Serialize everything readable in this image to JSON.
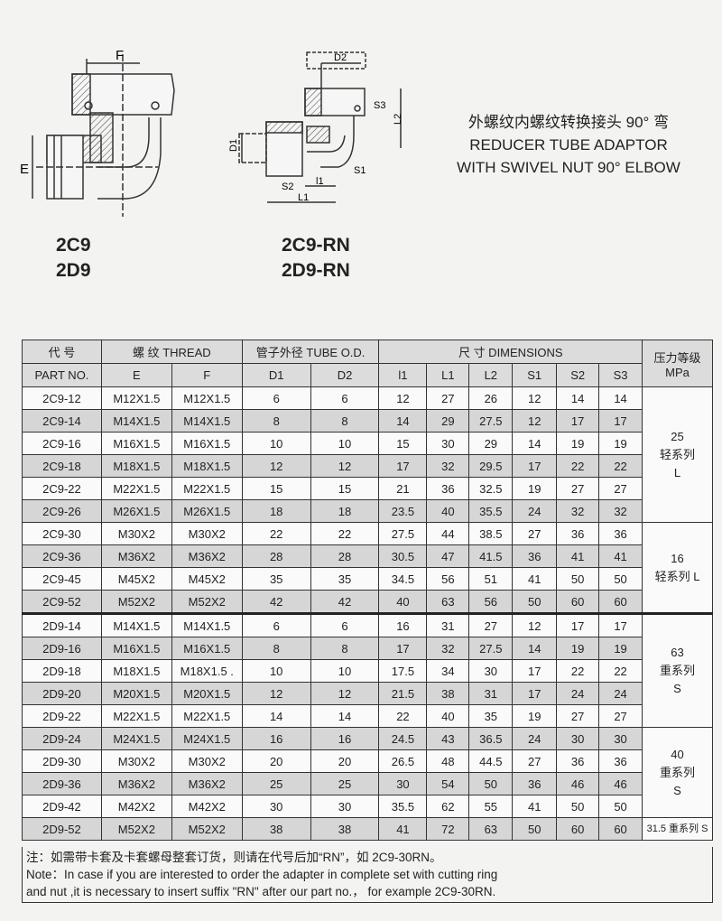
{
  "drawings": {
    "left_labels": {
      "f": "F",
      "e": "E"
    },
    "right_labels": {
      "d2": "D2",
      "s3": "S3",
      "l2": "L2",
      "d1": "D1",
      "s1": "S1",
      "s2": "S2",
      "l1_small": "l1",
      "l1": "L1"
    }
  },
  "models": {
    "left": [
      "2C9",
      "2D9"
    ],
    "right": [
      "2C9-RN",
      "2D9-RN"
    ]
  },
  "title": {
    "cn": "外螺纹内螺纹转换接头 90° 弯",
    "en1": "REDUCER TUBE ADAPTOR",
    "en2": "WITH SWIVEL NUT 90° ELBOW"
  },
  "table": {
    "header": {
      "part_cn": "代 号",
      "part_en": "PART NO.",
      "thread": "螺 纹  THREAD",
      "tube": "管子外径 TUBE O.D.",
      "dims": "尺 寸   DIMENSIONS",
      "pressure": "压力等级",
      "pressure_unit": "MPa",
      "cols": [
        "E",
        "F",
        "D1",
        "D2",
        "l1",
        "L1",
        "L2",
        "S1",
        "S2",
        "S3"
      ]
    },
    "rows": [
      [
        "2C9-12",
        "M12X1.5",
        "M12X1.5",
        "6",
        "6",
        "12",
        "27",
        "26",
        "12",
        "14",
        "14"
      ],
      [
        "2C9-14",
        "M14X1.5",
        "M14X1.5",
        "8",
        "8",
        "14",
        "29",
        "27.5",
        "12",
        "17",
        "17"
      ],
      [
        "2C9-16",
        "M16X1.5",
        "M16X1.5",
        "10",
        "10",
        "15",
        "30",
        "29",
        "14",
        "19",
        "19"
      ],
      [
        "2C9-18",
        "M18X1.5",
        "M18X1.5",
        "12",
        "12",
        "17",
        "32",
        "29.5",
        "17",
        "22",
        "22"
      ],
      [
        "2C9-22",
        "M22X1.5",
        "M22X1.5",
        "15",
        "15",
        "21",
        "36",
        "32.5",
        "19",
        "27",
        "27"
      ],
      [
        "2C9-26",
        "M26X1.5",
        "M26X1.5",
        "18",
        "18",
        "23.5",
        "40",
        "35.5",
        "24",
        "32",
        "32"
      ],
      [
        "2C9-30",
        "M30X2",
        "M30X2",
        "22",
        "22",
        "27.5",
        "44",
        "38.5",
        "27",
        "36",
        "36"
      ],
      [
        "2C9-36",
        "M36X2",
        "M36X2",
        "28",
        "28",
        "30.5",
        "47",
        "41.5",
        "36",
        "41",
        "41"
      ],
      [
        "2C9-45",
        "M45X2",
        "M45X2",
        "35",
        "35",
        "34.5",
        "56",
        "51",
        "41",
        "50",
        "50"
      ],
      [
        "2C9-52",
        "M52X2",
        "M52X2",
        "42",
        "42",
        "40",
        "63",
        "56",
        "50",
        "60",
        "60"
      ],
      [
        "2D9-14",
        "M14X1.5",
        "M14X1.5",
        "6",
        "6",
        "16",
        "31",
        "27",
        "12",
        "17",
        "17"
      ],
      [
        "2D9-16",
        "M16X1.5",
        "M16X1.5",
        "8",
        "8",
        "17",
        "32",
        "27.5",
        "14",
        "19",
        "19"
      ],
      [
        "2D9-18",
        "M18X1.5",
        "M18X1.5 .",
        "10",
        "10",
        "17.5",
        "34",
        "30",
        "17",
        "22",
        "22"
      ],
      [
        "2D9-20",
        "M20X1.5",
        "M20X1.5",
        "12",
        "12",
        "21.5",
        "38",
        "31",
        "17",
        "24",
        "24"
      ],
      [
        "2D9-22",
        "M22X1.5",
        "M22X1.5",
        "14",
        "14",
        "22",
        "40",
        "35",
        "19",
        "27",
        "27"
      ],
      [
        "2D9-24",
        "M24X1.5",
        "M24X1.5",
        "16",
        "16",
        "24.5",
        "43",
        "36.5",
        "24",
        "30",
        "30"
      ],
      [
        "2D9-30",
        "M30X2",
        "M30X2",
        "20",
        "20",
        "26.5",
        "48",
        "44.5",
        "27",
        "36",
        "36"
      ],
      [
        "2D9-36",
        "M36X2",
        "M36X2",
        "25",
        "25",
        "30",
        "54",
        "50",
        "36",
        "46",
        "46"
      ],
      [
        "2D9-42",
        "M42X2",
        "M42X2",
        "30",
        "30",
        "35.5",
        "62",
        "55",
        "41",
        "50",
        "50"
      ],
      [
        "2D9-52",
        "M52X2",
        "M52X2",
        "38",
        "38",
        "41",
        "72",
        "63",
        "50",
        "60",
        "60"
      ]
    ],
    "pressure_groups": [
      {
        "rows": 6,
        "lines": [
          "25",
          "轻系列",
          "L"
        ]
      },
      {
        "rows": 4,
        "lines": [
          "16",
          "轻系列 L"
        ]
      },
      {
        "rows": 5,
        "lines": [
          "63",
          "重系列",
          "S"
        ]
      },
      {
        "rows": 4,
        "lines": [
          "40",
          "重系列",
          "S"
        ]
      },
      {
        "rows": 1,
        "lines": [
          "31.5 重系列 S"
        ]
      }
    ]
  },
  "note": {
    "cn": "注：如需带卡套及卡套螺母整套订货，则请在代号后加“RN”，如 2C9-30RN。",
    "en1": "Note：In case if you are interested to order the adapter in complete set with cutting ring",
    "en2": "and nut ,it is necessary to insert suffix \"RN\" after our part no.， for example 2C9-30RN."
  }
}
